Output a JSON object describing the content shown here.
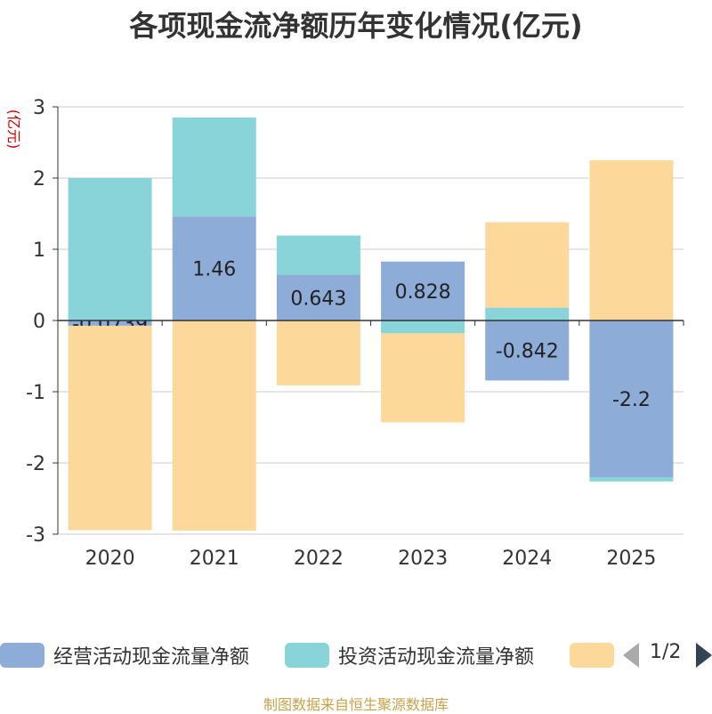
{
  "chart_data": {
    "type": "bar",
    "stacked": true,
    "title": "各项现金流净额历年变化情况(亿元)",
    "ylabel": "(亿元)",
    "ylim": [
      -3,
      3
    ],
    "yticks": [
      3,
      2,
      1,
      0,
      -1,
      -2,
      -3
    ],
    "categories": [
      "2020",
      "2021",
      "2022",
      "2023",
      "2024",
      "2025"
    ],
    "series": [
      {
        "name": "经营活动现金流量净额",
        "color": "#8eacd8",
        "values": [
          -0.0739,
          1.46,
          0.643,
          0.828,
          -0.842,
          -2.2
        ],
        "labels": [
          "-0.0739",
          "1.46",
          "0.643",
          "0.828",
          "-0.842",
          "-2.2"
        ]
      },
      {
        "name": "投资活动现金流量净额",
        "color": "#88d4d8",
        "values": [
          2.0,
          1.39,
          0.55,
          -0.18,
          0.18,
          -0.06
        ]
      },
      {
        "name": "",
        "color": "#fdd89b",
        "values": [
          -2.87,
          -2.95,
          -0.91,
          -1.25,
          1.2,
          2.25
        ]
      }
    ],
    "grid": true,
    "legend_position": "bottom"
  },
  "legend": {
    "page_indicator": "1/2"
  },
  "source_note": "制图数据来自恒生聚源数据库"
}
